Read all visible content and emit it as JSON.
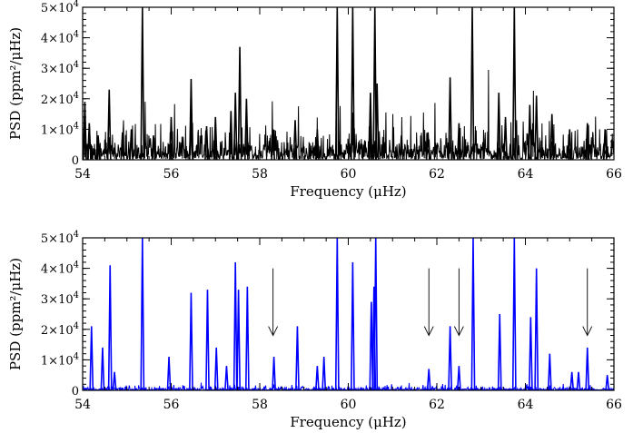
{
  "chart_data": [
    {
      "type": "line",
      "panel": "top",
      "xlabel": "Frequency (μHz)",
      "ylabel": "PSD (ppm²/μHz)",
      "xlim": [
        54,
        66
      ],
      "ylim": [
        0,
        50000
      ],
      "xticks": [
        54,
        56,
        58,
        60,
        62,
        64,
        66
      ],
      "xtick_labels": [
        "54",
        "56",
        "58",
        "60",
        "62",
        "64",
        "66"
      ],
      "yticks": [
        0,
        10000,
        20000,
        30000,
        40000,
        50000
      ],
      "ytick_labels": [
        {
          "base": "0",
          "exp": ""
        },
        {
          "base": "1×10",
          "exp": "4"
        },
        {
          "base": "2×10",
          "exp": "4"
        },
        {
          "base": "3×10",
          "exp": "4"
        },
        {
          "base": "4×10",
          "exp": "4"
        },
        {
          "base": "5×10",
          "exp": "4"
        }
      ],
      "grid": false,
      "line_color": "#000000",
      "noise_level": 4000,
      "peaks": [
        {
          "x": 54.05,
          "y": 19000
        },
        {
          "x": 54.15,
          "y": 12000
        },
        {
          "x": 54.35,
          "y": 8000
        },
        {
          "x": 54.6,
          "y": 23000
        },
        {
          "x": 54.9,
          "y": 9000
        },
        {
          "x": 55.1,
          "y": 10000
        },
        {
          "x": 55.35,
          "y": 50000
        },
        {
          "x": 55.6,
          "y": 8000
        },
        {
          "x": 56.0,
          "y": 14000
        },
        {
          "x": 56.45,
          "y": 26500
        },
        {
          "x": 56.8,
          "y": 11000
        },
        {
          "x": 57.0,
          "y": 14000
        },
        {
          "x": 57.35,
          "y": 16000
        },
        {
          "x": 57.45,
          "y": 22000
        },
        {
          "x": 57.55,
          "y": 37000
        },
        {
          "x": 57.7,
          "y": 20000
        },
        {
          "x": 58.3,
          "y": 10000
        },
        {
          "x": 58.8,
          "y": 13000
        },
        {
          "x": 59.3,
          "y": 10000
        },
        {
          "x": 59.75,
          "y": 50000
        },
        {
          "x": 60.1,
          "y": 50000
        },
        {
          "x": 60.5,
          "y": 22000
        },
        {
          "x": 60.6,
          "y": 50000
        },
        {
          "x": 60.65,
          "y": 25000
        },
        {
          "x": 61.2,
          "y": 8000
        },
        {
          "x": 61.8,
          "y": 9000
        },
        {
          "x": 62.3,
          "y": 27000
        },
        {
          "x": 62.5,
          "y": 12000
        },
        {
          "x": 62.8,
          "y": 50000
        },
        {
          "x": 63.4,
          "y": 22000
        },
        {
          "x": 63.55,
          "y": 14000
        },
        {
          "x": 63.75,
          "y": 50000
        },
        {
          "x": 64.1,
          "y": 18000
        },
        {
          "x": 64.25,
          "y": 21000
        },
        {
          "x": 64.6,
          "y": 15000
        },
        {
          "x": 65.0,
          "y": 10000
        },
        {
          "x": 65.4,
          "y": 12000
        },
        {
          "x": 65.8,
          "y": 10000
        }
      ]
    },
    {
      "type": "line",
      "panel": "bottom",
      "xlabel": "Frequency (μHz)",
      "ylabel": "PSD (ppm²/μHz)",
      "xlim": [
        54,
        66
      ],
      "ylim": [
        0,
        50000
      ],
      "xticks": [
        54,
        56,
        58,
        60,
        62,
        64,
        66
      ],
      "xtick_labels": [
        "54",
        "56",
        "58",
        "60",
        "62",
        "64",
        "66"
      ],
      "yticks": [
        0,
        10000,
        20000,
        30000,
        40000,
        50000
      ],
      "ytick_labels": [
        {
          "base": "0",
          "exp": ""
        },
        {
          "base": "1×10",
          "exp": "4"
        },
        {
          "base": "2×10",
          "exp": "4"
        },
        {
          "base": "3×10",
          "exp": "4"
        },
        {
          "base": "4×10",
          "exp": "4"
        },
        {
          "base": "5×10",
          "exp": "4"
        }
      ],
      "grid": false,
      "line_color": "#0000ff",
      "noise_level": 1000,
      "peaks": [
        {
          "x": 54.2,
          "y": 21000
        },
        {
          "x": 54.45,
          "y": 14000
        },
        {
          "x": 54.62,
          "y": 41000
        },
        {
          "x": 54.72,
          "y": 6000
        },
        {
          "x": 55.35,
          "y": 50000
        },
        {
          "x": 55.95,
          "y": 11000
        },
        {
          "x": 56.45,
          "y": 32000
        },
        {
          "x": 56.82,
          "y": 33000
        },
        {
          "x": 57.02,
          "y": 14000
        },
        {
          "x": 57.25,
          "y": 8000
        },
        {
          "x": 57.45,
          "y": 42000
        },
        {
          "x": 57.52,
          "y": 33000
        },
        {
          "x": 57.72,
          "y": 34000
        },
        {
          "x": 58.32,
          "y": 11000
        },
        {
          "x": 58.85,
          "y": 21000
        },
        {
          "x": 59.3,
          "y": 8000
        },
        {
          "x": 59.45,
          "y": 11000
        },
        {
          "x": 59.75,
          "y": 50000
        },
        {
          "x": 60.1,
          "y": 42000
        },
        {
          "x": 60.52,
          "y": 29000
        },
        {
          "x": 60.58,
          "y": 34000
        },
        {
          "x": 60.62,
          "y": 50000
        },
        {
          "x": 61.82,
          "y": 7000
        },
        {
          "x": 62.3,
          "y": 21000
        },
        {
          "x": 62.5,
          "y": 8000
        },
        {
          "x": 62.82,
          "y": 50000
        },
        {
          "x": 63.42,
          "y": 25000
        },
        {
          "x": 63.75,
          "y": 50000
        },
        {
          "x": 64.12,
          "y": 24000
        },
        {
          "x": 64.25,
          "y": 40000
        },
        {
          "x": 64.55,
          "y": 12000
        },
        {
          "x": 65.05,
          "y": 6000
        },
        {
          "x": 65.2,
          "y": 6000
        },
        {
          "x": 65.4,
          "y": 14000
        },
        {
          "x": 65.85,
          "y": 5000
        }
      ],
      "arrows": [
        {
          "x": 58.3,
          "y_top": 40000,
          "y_bottom": 18000
        },
        {
          "x": 61.82,
          "y_top": 40000,
          "y_bottom": 18000
        },
        {
          "x": 62.5,
          "y_top": 40000,
          "y_bottom": 18000
        },
        {
          "x": 65.4,
          "y_top": 40000,
          "y_bottom": 18000
        }
      ]
    }
  ]
}
